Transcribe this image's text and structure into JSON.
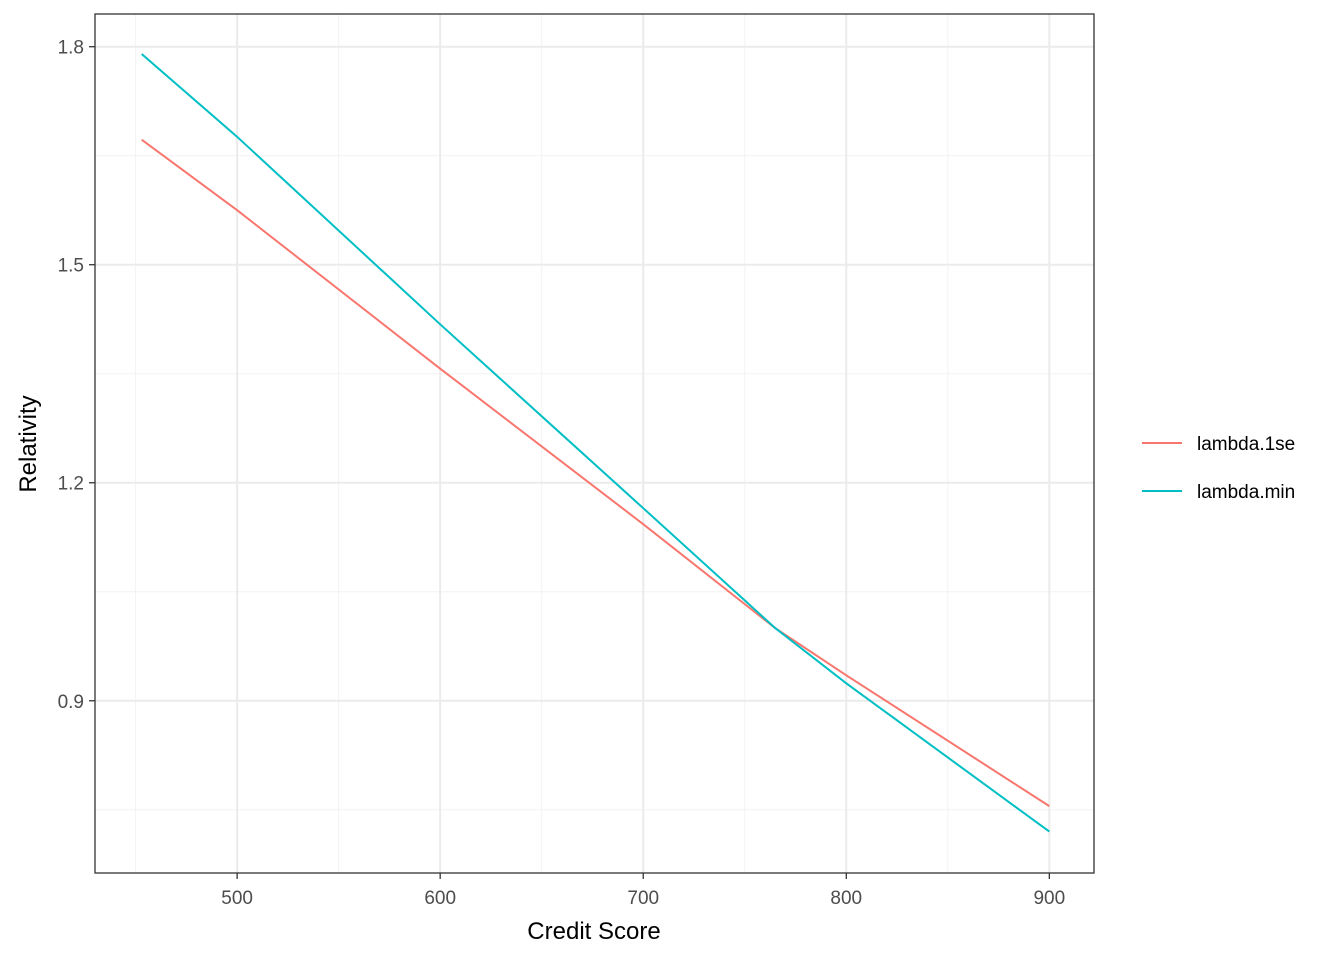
{
  "chart_data": {
    "type": "line",
    "title": "",
    "xlabel": "Credit Score",
    "ylabel": "Relativity",
    "xlim": [
      430,
      922
    ],
    "ylim": [
      0.663,
      1.845
    ],
    "x_ticks": [
      500,
      600,
      700,
      800,
      900
    ],
    "x_tick_labels": [
      "500",
      "600",
      "700",
      "800",
      "900"
    ],
    "y_ticks": [
      0.9,
      1.2,
      1.5,
      1.8
    ],
    "y_tick_labels": [
      "0.9",
      "1.2",
      "1.5",
      "1.8"
    ],
    "grid": true,
    "legend_position": "right",
    "series": [
      {
        "name": "lambda.1se",
        "color": "#F8766D",
        "x": [
          453,
          500,
          600,
          700,
          765,
          800,
          900
        ],
        "y": [
          1.672,
          1.575,
          1.357,
          1.143,
          1.0,
          0.935,
          0.755
        ]
      },
      {
        "name": "lambda.min",
        "color": "#00BFC4",
        "x": [
          453,
          500,
          600,
          700,
          765,
          800,
          900
        ],
        "y": [
          1.79,
          1.676,
          1.418,
          1.165,
          1.0,
          0.924,
          0.72
        ]
      }
    ]
  }
}
